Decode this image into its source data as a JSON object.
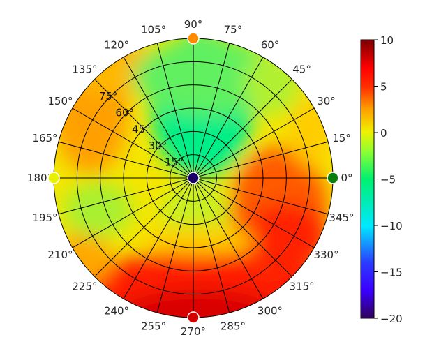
{
  "chart_data": {
    "type": "heatmap",
    "subtype": "polar-heatmap",
    "title": "",
    "colormap": "jet/turbo-like (dark blue -> blue -> cyan -> green -> yellow -> orange -> red -> dark red)",
    "colorbar": {
      "min": -20,
      "max": 10,
      "ticks": [
        10,
        5,
        0,
        -5,
        -10,
        -15,
        -20
      ],
      "tick_labels": [
        "10",
        "5",
        "0",
        "−5",
        "−10",
        "−15",
        "−20"
      ],
      "position": "right"
    },
    "angular_axis": {
      "ticks_deg": [
        0,
        15,
        30,
        45,
        60,
        75,
        90,
        105,
        120,
        135,
        150,
        165,
        180,
        195,
        210,
        225,
        240,
        255,
        270,
        285,
        300,
        315,
        330,
        345
      ],
      "tick_labels": [
        "0°",
        "15°",
        "30°",
        "45°",
        "60°",
        "75°",
        "90°",
        "105°",
        "120°",
        "135°",
        "150°",
        "165°",
        "180°",
        "195°",
        "210°",
        "225°",
        "240°",
        "255°",
        "270°",
        "285°",
        "300°",
        "315°",
        "330°",
        "345°"
      ],
      "direction": "counterclockwise",
      "zero_location": "east"
    },
    "radial_axis": {
      "ticks_deg": [
        15,
        30,
        45,
        60,
        75
      ],
      "tick_labels": [
        "15°",
        "30°",
        "45°",
        "60°",
        "75°"
      ],
      "range": [
        0,
        90
      ],
      "label_angle_deg": 135
    },
    "grid": true,
    "markers": [
      {
        "azimuth_deg": 0,
        "radius": 90,
        "color": "#0a7d0a",
        "edge": "#ffffff"
      },
      {
        "azimuth_deg": 90,
        "radius": 90,
        "color": "#ff8c00",
        "edge": "#ffffff"
      },
      {
        "azimuth_deg": 180,
        "radius": 90,
        "color": "#e6f000",
        "edge": "#ffffff"
      },
      {
        "azimuth_deg": 270,
        "radius": 90,
        "color": "#d40000",
        "edge": "#ffffff"
      },
      {
        "azimuth_deg": 0,
        "radius": 0,
        "color": "#1a0066",
        "edge": "#ffffff"
      }
    ],
    "regions": [
      {
        "description": "center",
        "approx_value": -20
      },
      {
        "description": "top (azimuth 60-120, inner-mid)",
        "approx_value": -5
      },
      {
        "description": "upper-left outer (azimuth 120-170)",
        "approx_value": 2
      },
      {
        "description": "upper-right outer (azimuth 20-60)",
        "approx_value": 0
      },
      {
        "description": "right lower (azimuth 330-360, mid)",
        "approx_value": 4
      },
      {
        "description": "bottom outer (azimuth 220-320)",
        "approx_value": 6
      },
      {
        "description": "bottom-most edge near 270",
        "approx_value": 8
      },
      {
        "description": "left (azimuth 180-210)",
        "approx_value": -2
      },
      {
        "description": "inner bottom (azimuth 240-300, r<30)",
        "approx_value": -2
      }
    ]
  }
}
